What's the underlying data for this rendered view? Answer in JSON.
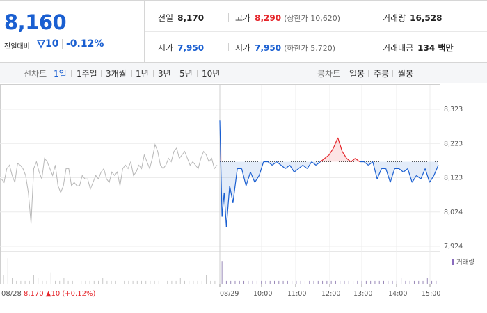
{
  "summary": {
    "current_price": "8,160",
    "change_label": "전일대비",
    "change_direction": "down",
    "change_value": "10",
    "change_rate": "-0.12%",
    "quotes": {
      "prev_close": {
        "label": "전일",
        "value": "8,170"
      },
      "high": {
        "label": "고가",
        "value": "8,290",
        "sub": "(상한가 10,620)"
      },
      "volume": {
        "label": "거래량",
        "value": "16,528"
      },
      "open": {
        "label": "시가",
        "value": "7,950"
      },
      "low": {
        "label": "저가",
        "value": "7,950",
        "sub": "(하한가 5,720)"
      },
      "amount": {
        "label": "거래대금",
        "value": "134 백만"
      }
    }
  },
  "period_bar": {
    "line_label": "선차트",
    "line_periods": [
      "1일",
      "1주일",
      "3개월",
      "1년",
      "3년",
      "5년",
      "10년"
    ],
    "active_period": "1일",
    "candle_label": "봉차트",
    "candle_periods": [
      "일봉",
      "주봉",
      "월봉"
    ]
  },
  "colors": {
    "up": "#e5252a",
    "down": "#1a5fd1",
    "prev_day": "#b8b8b8"
  },
  "chart_data": {
    "type": "line",
    "price_axis": {
      "ticks": [
        "8,323",
        "8,223",
        "8,123",
        "8,024",
        "7,924"
      ],
      "ylim": [
        7924,
        8323
      ]
    },
    "time_labels": [
      "08/29",
      "10:00",
      "11:00",
      "12:00",
      "13:00",
      "14:00",
      "15:00"
    ],
    "prev_close": 8170,
    "series": [
      {
        "key": "prev_day",
        "x": [
          0,
          0.0125,
          0.025,
          0.0375,
          0.05,
          0.0625,
          0.075,
          0.0875,
          0.1,
          0.1125,
          0.125,
          0.1375,
          0.15,
          0.1625,
          0.175,
          0.1875,
          0.2,
          0.2125,
          0.225,
          0.2375,
          0.25,
          0.2625,
          0.275,
          0.2875,
          0.3,
          0.3125,
          0.325,
          0.3375,
          0.35,
          0.3625,
          0.375,
          0.3875,
          0.4,
          0.4125,
          0.425,
          0.4375,
          0.45,
          0.4625,
          0.475,
          0.4875,
          0.5,
          0.5125,
          0.525,
          0.5375,
          0.55,
          0.5625,
          0.575,
          0.5875,
          0.6,
          0.6125,
          0.625,
          0.6375,
          0.65,
          0.6625,
          0.675,
          0.6875,
          0.7,
          0.7125,
          0.725,
          0.7375,
          0.75,
          0.7625,
          0.775,
          0.7875,
          0.8,
          0.8125,
          0.825,
          0.8375,
          0.85,
          0.8625,
          0.875,
          0.8875,
          0.9,
          0.9125,
          0.925,
          0.9375,
          0.95,
          0.9625,
          0.975,
          0.9875,
          1
        ],
        "values": [
          8120,
          8110,
          8150,
          8160,
          8130,
          8110,
          8165,
          8160,
          8150,
          8130,
          8080,
          7990,
          8150,
          8170,
          8140,
          8120,
          8180,
          8170,
          8150,
          8130,
          8160,
          8100,
          8080,
          8100,
          8150,
          8150,
          8100,
          8110,
          8100,
          8100,
          8130,
          8120,
          8120,
          8090,
          8110,
          8130,
          8120,
          8140,
          8150,
          8120,
          8110,
          8140,
          8130,
          8140,
          8100,
          8150,
          8160,
          8150,
          8170,
          8130,
          8140,
          8160,
          8150,
          8190,
          8170,
          8150,
          8180,
          8220,
          8200,
          8160,
          8150,
          8160,
          8180,
          8170,
          8200,
          8210,
          8180,
          8190,
          8200,
          8180,
          8160,
          8170,
          8160,
          8150,
          8180,
          8200,
          8190,
          8170,
          8180,
          8150,
          8160
        ]
      },
      {
        "key": "today",
        "x": [
          0,
          0.01,
          0.02,
          0.03,
          0.045,
          0.06,
          0.08,
          0.1,
          0.12,
          0.14,
          0.16,
          0.18,
          0.2,
          0.22,
          0.24,
          0.26,
          0.28,
          0.3,
          0.32,
          0.34,
          0.36,
          0.38,
          0.4,
          0.42,
          0.44,
          0.46,
          0.48,
          0.5,
          0.52,
          0.54,
          0.56,
          0.58,
          0.6,
          0.62,
          0.64,
          0.66,
          0.68,
          0.7,
          0.72,
          0.74,
          0.76,
          0.78,
          0.8,
          0.82,
          0.84,
          0.86,
          0.88,
          0.9,
          0.92,
          0.94,
          0.96,
          0.98,
          1
        ],
        "values": [
          8290,
          8010,
          8080,
          7980,
          8100,
          8050,
          8150,
          8150,
          8100,
          8140,
          8110,
          8130,
          8170,
          8170,
          8160,
          8170,
          8160,
          8150,
          8160,
          8140,
          8150,
          8160,
          8150,
          8170,
          8160,
          8170,
          8180,
          8190,
          8210,
          8240,
          8200,
          8180,
          8170,
          8180,
          8170,
          8170,
          8160,
          8170,
          8120,
          8150,
          8150,
          8110,
          8150,
          8150,
          8140,
          8150,
          8110,
          8130,
          8120,
          8150,
          8110,
          8130,
          8160
        ]
      }
    ],
    "volume_legend": "거래량",
    "volume_series": {
      "x": [
        0.01,
        0.03,
        0.05,
        0.07,
        0.09,
        0.11,
        0.13,
        0.15,
        0.17,
        0.19,
        0.21,
        0.23,
        0.25,
        0.27,
        0.29,
        0.31,
        0.33,
        0.35,
        0.37,
        0.39,
        0.41,
        0.43,
        0.45,
        0.47,
        0.49,
        0.51,
        0.53,
        0.55,
        0.57,
        0.59,
        0.61,
        0.63,
        0.65,
        0.67,
        0.69,
        0.71,
        0.73,
        0.75,
        0.77,
        0.79,
        0.81,
        0.83,
        0.85,
        0.87,
        0.89,
        0.91,
        0.93,
        0.95,
        0.97,
        0.99
      ],
      "values": [
        3,
        9,
        2,
        1,
        1,
        1,
        1,
        3,
        2,
        1,
        1,
        4,
        1,
        1,
        2,
        1,
        1,
        1,
        1,
        1,
        1,
        1,
        1,
        2,
        1,
        1,
        1,
        1,
        1,
        1,
        1,
        1,
        1,
        1,
        1,
        1,
        1,
        1,
        1,
        1,
        1,
        2,
        1,
        1,
        1,
        1,
        1,
        3,
        1,
        1
      ],
      "today_values": [
        8,
        1,
        1,
        1,
        1,
        1,
        1,
        1,
        1,
        1,
        1,
        1,
        1,
        1,
        1,
        1,
        1,
        1,
        1,
        1,
        1,
        1,
        1,
        1,
        1,
        1,
        1,
        1,
        1,
        1,
        1,
        1,
        1,
        1,
        1,
        1,
        1,
        1,
        1,
        1,
        1,
        2,
        1,
        1,
        1,
        1,
        1,
        2,
        1,
        1
      ],
      "note": ""
    },
    "bottom_left": {
      "date": "08/28",
      "price": "8,170",
      "arrow": "▲",
      "change": "10",
      "rate": "(+0.12%)"
    }
  }
}
